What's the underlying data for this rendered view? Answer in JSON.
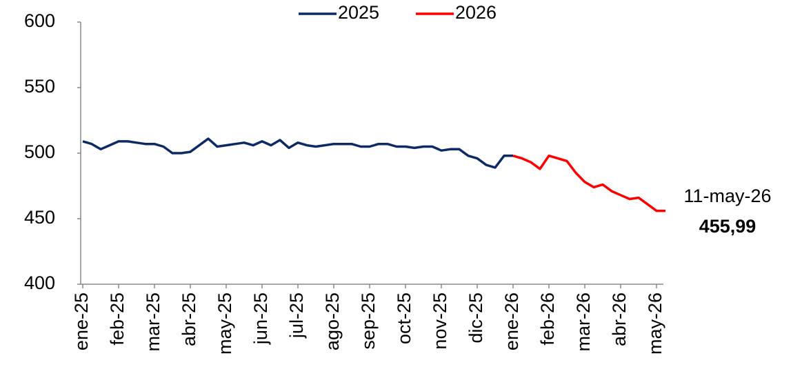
{
  "chart_data": {
    "type": "line",
    "categories": [
      "ene-25",
      null,
      null,
      null,
      "feb-25",
      null,
      null,
      null,
      "mar-25",
      null,
      null,
      null,
      "abr-25",
      null,
      null,
      null,
      "may-25",
      null,
      null,
      null,
      "jun-25",
      null,
      null,
      null,
      "jul-25",
      null,
      null,
      null,
      "ago-25",
      null,
      null,
      null,
      "sep-25",
      null,
      null,
      null,
      "oct-25",
      null,
      null,
      null,
      "nov-25",
      null,
      null,
      null,
      "dic-25",
      null,
      null,
      null,
      "ene-26",
      null,
      null,
      null,
      "feb-26",
      null,
      null,
      null,
      "mar-26",
      null,
      null,
      null,
      "abr-26",
      null,
      null,
      null,
      "may-26",
      null
    ],
    "series": [
      {
        "name": "2025",
        "color": "#0d2a66",
        "values": [
          509,
          507,
          503,
          506,
          509,
          509,
          508,
          507,
          507,
          505,
          500,
          500,
          501,
          506,
          511,
          505,
          506,
          507,
          508,
          506,
          509,
          506,
          510,
          504,
          508,
          506,
          505,
          506,
          507,
          507,
          507,
          505,
          505,
          507,
          507,
          505,
          505,
          504,
          505,
          505,
          502,
          503,
          503,
          498,
          496,
          491,
          489,
          498,
          498,
          null,
          null,
          null,
          null,
          null,
          null,
          null,
          null,
          null,
          null,
          null,
          null,
          null,
          null,
          null,
          null,
          null
        ]
      },
      {
        "name": "2026",
        "color": "#ff0000",
        "values": [
          null,
          null,
          null,
          null,
          null,
          null,
          null,
          null,
          null,
          null,
          null,
          null,
          null,
          null,
          null,
          null,
          null,
          null,
          null,
          null,
          null,
          null,
          null,
          null,
          null,
          null,
          null,
          null,
          null,
          null,
          null,
          null,
          null,
          null,
          null,
          null,
          null,
          null,
          null,
          null,
          null,
          null,
          null,
          null,
          null,
          null,
          null,
          null,
          498,
          496,
          493,
          488,
          498,
          496,
          494,
          485,
          478,
          474,
          476,
          471,
          468,
          465,
          466,
          461,
          456,
          455.99
        ],
        "value_labels": [
          null,
          null,
          null,
          null,
          null,
          null,
          null,
          null,
          null,
          null,
          null,
          null,
          null,
          null,
          null,
          null,
          null,
          null,
          null,
          null,
          null,
          null,
          null,
          null,
          null,
          null,
          null,
          null,
          null,
          null,
          null,
          null,
          null,
          null,
          null,
          null,
          null,
          null,
          null,
          null,
          null,
          null,
          null,
          null,
          null,
          null,
          null,
          null,
          null,
          null,
          null,
          null,
          null,
          null,
          null,
          null,
          null,
          null,
          null,
          null,
          null,
          null,
          null,
          null,
          null,
          "455,99"
        ]
      }
    ],
    "annotation": "11-may-26",
    "ylim": [
      400,
      600
    ],
    "yticks": [
      400,
      450,
      500,
      550,
      600
    ],
    "grid": false,
    "legend": "top"
  }
}
